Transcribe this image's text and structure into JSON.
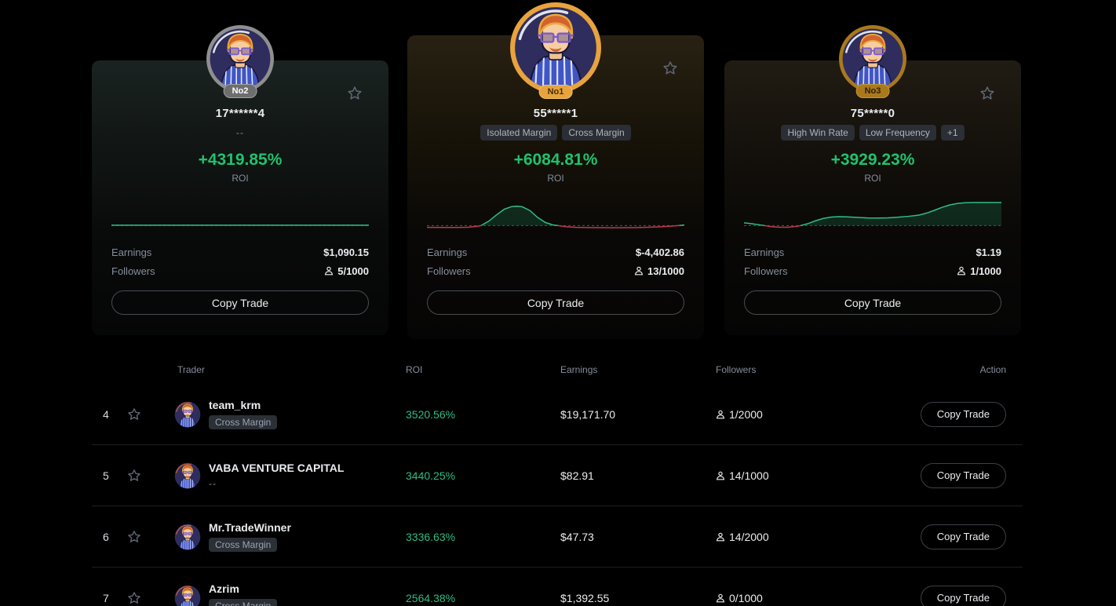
{
  "colors": {
    "background": "#000000",
    "green_roi_card": "#1fc26c",
    "green_roi_table": "#2ebd85",
    "spark_red": "#bf3a4d",
    "gold_no1": "#e8a33d",
    "bronze_no3": "#a9791c",
    "silver_no2": "#8f8f8f",
    "text_primary": "#eaecef",
    "text_muted": "#848e9c"
  },
  "icons": {
    "star": "☆",
    "person": "👤",
    "avatar": "cartoon-trader-portrait"
  },
  "cards": [
    {
      "rank_badge": "No2",
      "name": "17******4",
      "subtitle": "--",
      "tags": [],
      "roi": "+4319.85%",
      "roi_label": "ROI",
      "earnings_label": "Earnings",
      "earnings": "$1,090.15",
      "followers_label": "Followers",
      "followers": "5/1000",
      "button": "Copy Trade",
      "sparkline": {
        "baseline": 24,
        "segments": [
          {
            "color": "green",
            "fill": false,
            "points": [
              [
                0,
                23.7
              ],
              [
                100,
                23.7
              ]
            ]
          }
        ]
      }
    },
    {
      "rank_badge": "No1",
      "name": "55*****1",
      "subtitle": "",
      "tags": [
        "Isolated Margin",
        "Cross Margin"
      ],
      "roi": "+6084.81%",
      "roi_label": "ROI",
      "earnings_label": "Earnings",
      "earnings": "$-4,402.86",
      "followers_label": "Followers",
      "followers": "13/1000",
      "button": "Copy Trade",
      "sparkline": {
        "baseline": 24,
        "segments": [
          {
            "color": "red",
            "fill": false,
            "points": [
              [
                0,
                25.4
              ],
              [
                6,
                25.5
              ],
              [
                12,
                25.5
              ],
              [
                16,
                25.3
              ],
              [
                19,
                24.7
              ],
              [
                21,
                24
              ]
            ]
          },
          {
            "color": "green",
            "fill": true,
            "points": [
              [
                21,
                24
              ],
              [
                24,
                20.5
              ],
              [
                27,
                15.5
              ],
              [
                30,
                11
              ],
              [
                33,
                8.8
              ],
              [
                35,
                8.5
              ],
              [
                37,
                9
              ],
              [
                40,
                12
              ],
              [
                43,
                17.5
              ],
              [
                46,
                21.5
              ],
              [
                49,
                23.5
              ],
              [
                51,
                24
              ]
            ]
          },
          {
            "color": "red",
            "fill": false,
            "points": [
              [
                51,
                24
              ],
              [
                54,
                24.9
              ],
              [
                58,
                25.4
              ],
              [
                64,
                25.6
              ],
              [
                72,
                25.7
              ],
              [
                80,
                25.6
              ],
              [
                86,
                25.3
              ],
              [
                91,
                24.9
              ],
              [
                95,
                24.4
              ],
              [
                98,
                23.9
              ]
            ]
          },
          {
            "color": "green",
            "fill": false,
            "points": [
              [
                98,
                23.9
              ],
              [
                100,
                23.5
              ]
            ]
          }
        ]
      }
    },
    {
      "rank_badge": "No3",
      "name": "75*****0",
      "subtitle": "",
      "tags": [
        "High Win Rate",
        "Low Frequency",
        "+1"
      ],
      "roi": "+3929.23%",
      "roi_label": "ROI",
      "earnings_label": "Earnings",
      "earnings": "$1.19",
      "followers_label": "Followers",
      "followers": "1/1000",
      "button": "Copy Trade",
      "sparkline": {
        "baseline": 24,
        "segments": [
          {
            "color": "green",
            "fill": false,
            "points": [
              [
                0,
                21.8
              ],
              [
                3,
                22.5
              ],
              [
                6,
                23.4
              ],
              [
                8,
                24
              ]
            ]
          },
          {
            "color": "red",
            "fill": false,
            "points": [
              [
                8,
                24
              ],
              [
                11,
                24.9
              ],
              [
                14,
                25.3
              ],
              [
                17,
                25.3
              ],
              [
                20,
                24.7
              ],
              [
                22,
                24
              ]
            ]
          },
          {
            "color": "green",
            "fill": true,
            "points": [
              [
                22,
                24
              ],
              [
                25,
                22.3
              ],
              [
                28,
                20
              ],
              [
                31,
                18.2
              ],
              [
                34,
                17.2
              ],
              [
                37,
                16.9
              ],
              [
                40,
                17
              ],
              [
                44,
                17.5
              ],
              [
                48,
                17.9
              ],
              [
                52,
                18
              ],
              [
                56,
                17.8
              ],
              [
                60,
                17.3
              ],
              [
                64,
                16.6
              ],
              [
                68,
                15.6
              ],
              [
                71,
                14
              ],
              [
                74,
                11.8
              ],
              [
                77,
                9.4
              ],
              [
                80,
                7.5
              ],
              [
                83,
                6.3
              ],
              [
                86,
                5.8
              ],
              [
                90,
                5.6
              ],
              [
                95,
                5.6
              ],
              [
                100,
                5.6
              ]
            ]
          }
        ]
      }
    }
  ],
  "table": {
    "headers": {
      "trader": "Trader",
      "roi": "ROI",
      "earnings": "Earnings",
      "followers": "Followers",
      "action": "Action"
    },
    "rows": [
      {
        "rank": "4",
        "name": "team_krm",
        "tag": "Cross Margin",
        "subtitle": "",
        "roi": "3520.56%",
        "earnings": "$19,171.70",
        "followers": "1/2000",
        "action": "Copy Trade"
      },
      {
        "rank": "5",
        "name": "VABA VENTURE CAPITAL",
        "tag": "",
        "subtitle": "--",
        "roi": "3440.25%",
        "earnings": "$82.91",
        "followers": "14/1000",
        "action": "Copy Trade"
      },
      {
        "rank": "6",
        "name": "Mr.TradeWinner",
        "tag": "Cross Margin",
        "subtitle": "",
        "roi": "3336.63%",
        "earnings": "$47.73",
        "followers": "14/2000",
        "action": "Copy Trade"
      },
      {
        "rank": "7",
        "name": "Azrim",
        "tag": "Cross Margin",
        "subtitle": "",
        "roi": "2564.38%",
        "earnings": "$1,392.55",
        "followers": "0/1000",
        "action": "Copy Trade"
      }
    ]
  }
}
